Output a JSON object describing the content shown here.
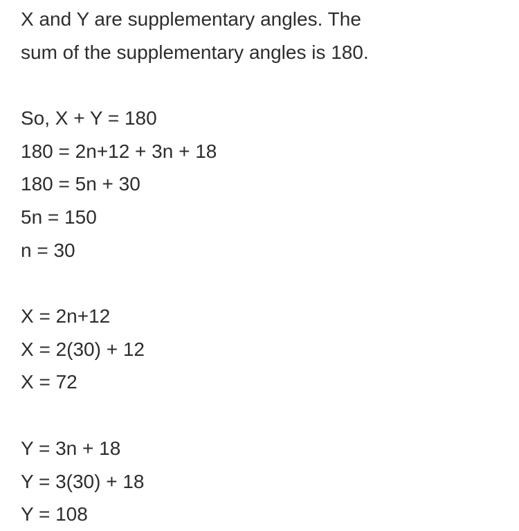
{
  "intro": {
    "line1": "X and Y are supplementary angles. The",
    "line2": "sum of the supplementary angles is 180."
  },
  "solve_n": {
    "line1": "So, X + Y = 180",
    "line2": "180 = 2n+12 + 3n + 18",
    "line3": "180 = 5n + 30",
    "line4": "5n = 150",
    "line5": "n = 30"
  },
  "solve_x": {
    "line1": "X = 2n+12",
    "line2": "X = 2(30) + 12",
    "line3": "X = 72"
  },
  "solve_y": {
    "line1": "Y = 3n + 18",
    "line2": "Y = 3(30) + 18",
    "line3": "Y = 108"
  },
  "styling": {
    "font_size": 28,
    "line_height": 1.7,
    "text_color": "#2d2d2d",
    "background_color": "#ffffff",
    "paragraph_gap": 48,
    "padding_horizontal": 30,
    "font_family": "-apple-system, sans-serif"
  }
}
